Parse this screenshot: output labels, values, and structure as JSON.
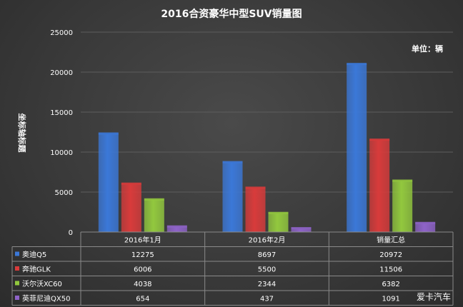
{
  "chart_data": {
    "type": "bar",
    "title": "2016合资豪华中型SUV销量图",
    "unit_label": "单位：辆",
    "ylabel": "坐标轴标题",
    "ylim": [
      0,
      25000
    ],
    "yticks": [
      0,
      5000,
      10000,
      15000,
      20000,
      25000
    ],
    "grid": true,
    "legend": "table-bottom",
    "categories": [
      "2016年1月",
      "2016年2月",
      "销量汇总"
    ],
    "series": [
      {
        "name": "奥迪Q5",
        "values": [
          12275,
          8697,
          20972
        ],
        "color": "#3b78d8"
      },
      {
        "name": "奔驰GLK",
        "values": [
          6006,
          5500,
          11506
        ],
        "color": "#d83b3b"
      },
      {
        "name": "沃尔沃XC60",
        "values": [
          4038,
          2344,
          6382
        ],
        "color": "#92c83e"
      },
      {
        "name": "英菲尼迪QX50",
        "values": [
          654,
          437,
          1091
        ],
        "color": "#8e63c8"
      }
    ]
  },
  "watermark": "爱卡汽车"
}
